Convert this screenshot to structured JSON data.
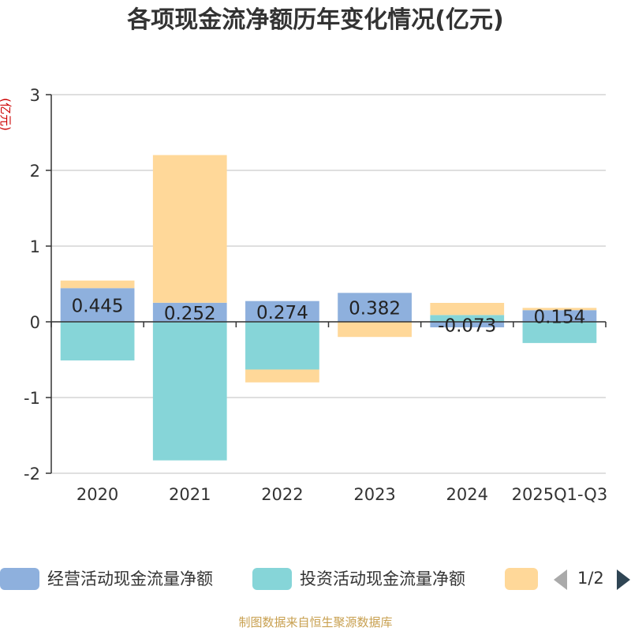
{
  "chart_data": {
    "type": "bar",
    "stacked": true,
    "title": "各项现金流净额历年变化情况(亿元)",
    "ylabel": "(亿元)",
    "xlabel": "",
    "ylim": [
      -2,
      3
    ],
    "yticks": [
      "-2",
      "-1",
      "0",
      "1",
      "2",
      "3"
    ],
    "categories": [
      "2020",
      "2021",
      "2022",
      "2023",
      "2024",
      "2025Q1-Q3"
    ],
    "series": [
      {
        "name": "经营活动现金流量净额",
        "color": "#8eb0dd",
        "values": [
          0.445,
          0.252,
          0.274,
          0.382,
          -0.073,
          0.154
        ]
      },
      {
        "name": "投资活动现金流量净额",
        "color": "#86d5d8",
        "values": [
          -0.51,
          -1.83,
          -0.63,
          0.0,
          0.09,
          -0.28
        ]
      },
      {
        "name": "",
        "color": "#ffd899",
        "values": [
          0.1,
          1.95,
          -0.17,
          -0.2,
          0.16,
          0.03
        ]
      }
    ],
    "data_labels": [
      "0.445",
      "0.252",
      "0.274",
      "0.382",
      "-0.073",
      "0.154"
    ],
    "legend_position": "bottom"
  },
  "legend_pager": {
    "text": "1/2"
  },
  "footer": {
    "source": "制图数据来自恒生聚源数据库"
  }
}
